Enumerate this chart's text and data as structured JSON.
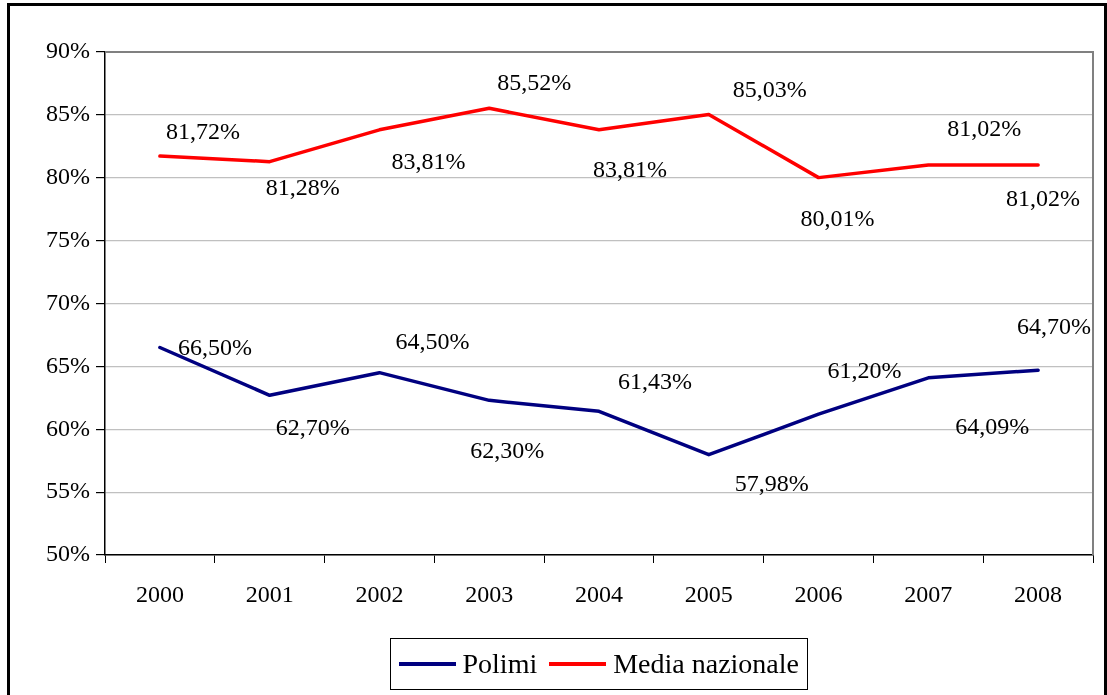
{
  "chart_data": {
    "type": "line",
    "categories": [
      "2000",
      "2001",
      "2002",
      "2003",
      "2004",
      "2005",
      "2006",
      "2007",
      "2008"
    ],
    "series": [
      {
        "name": "Polimi",
        "color": "#000080",
        "values": [
          66.5,
          62.7,
          64.5,
          62.3,
          61.43,
          57.98,
          61.2,
          64.09,
          64.7
        ],
        "value_labels": [
          "66,50%",
          "62,70%",
          "64,50%",
          "62,30%",
          "61,43%",
          "57,98%",
          "61,20%",
          "64,09%",
          "64,70%"
        ]
      },
      {
        "name": "Media nazionale",
        "color": "#ff0000",
        "values": [
          81.72,
          81.28,
          83.81,
          85.52,
          83.81,
          85.03,
          80.01,
          81.02,
          81.02
        ],
        "value_labels": [
          "81,72%",
          "81,28%",
          "83,81%",
          "85,52%",
          "83,81%",
          "85,03%",
          "80,01%",
          "81,02%",
          "81,02%"
        ]
      }
    ],
    "ylim": [
      50,
      90
    ],
    "yticks": [
      {
        "value": 50,
        "label": "50%"
      },
      {
        "value": 55,
        "label": "55%"
      },
      {
        "value": 60,
        "label": "60%"
      },
      {
        "value": 65,
        "label": "65%"
      },
      {
        "value": 70,
        "label": "70%"
      },
      {
        "value": 75,
        "label": "75%"
      },
      {
        "value": 80,
        "label": "80%"
      },
      {
        "value": 85,
        "label": "85%"
      },
      {
        "value": 90,
        "label": "90%"
      }
    ],
    "grid": "y",
    "legend": "bottom",
    "marker": "none",
    "line_style": "solid"
  }
}
